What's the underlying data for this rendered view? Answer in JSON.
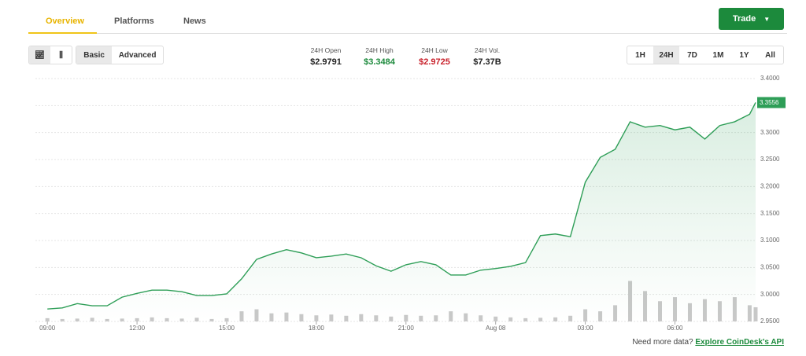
{
  "tabs": [
    "Overview",
    "Platforms",
    "News"
  ],
  "trade_button": "Trade",
  "chart_modes": [
    "Basic",
    "Advanced"
  ],
  "stats": [
    {
      "label": "24H Open",
      "value": "$2.9791"
    },
    {
      "label": "24H High",
      "value": "$3.3484"
    },
    {
      "label": "24H Low",
      "value": "$2.9725"
    },
    {
      "label": "24H Vol.",
      "value": "$7.37B"
    }
  ],
  "ranges": [
    "1H",
    "24H",
    "7D",
    "1M",
    "1Y",
    "All"
  ],
  "footer": {
    "prompt": "Need more data?",
    "link": "Explore CoinDesk's API"
  },
  "chart_data": {
    "type": "line",
    "x": [
      0,
      0.5,
      1,
      1.5,
      2,
      2.5,
      3,
      3.5,
      4,
      4.5,
      5,
      5.5,
      6,
      6.5,
      7,
      7.5,
      8,
      8.5,
      9,
      9.5,
      10,
      10.5,
      11,
      11.5,
      12,
      12.5,
      13,
      13.5,
      14,
      14.5,
      15,
      15.5,
      16,
      16.5,
      17,
      17.5,
      18,
      18.5,
      19,
      19.5,
      20,
      20.5,
      21,
      21.5,
      22,
      22.5,
      23,
      23.5,
      23.7
    ],
    "series": [
      {
        "color": "#2e9e57",
        "values": [
          2.973,
          2.975,
          2.983,
          2.979,
          2.979,
          2.995,
          3.002,
          3.008,
          3.008,
          3.005,
          2.998,
          2.998,
          3.001,
          3.029,
          3.065,
          3.075,
          3.083,
          3.077,
          3.068,
          3.071,
          3.075,
          3.068,
          3.053,
          3.043,
          3.055,
          3.061,
          3.055,
          3.036,
          3.036,
          3.045,
          3.048,
          3.052,
          3.059,
          3.109,
          3.112,
          3.107,
          3.208,
          3.254,
          3.269,
          3.32,
          3.31,
          3.313,
          3.305,
          3.31,
          3.288,
          3.313,
          3.32,
          3.334,
          3.3556
        ]
      },
      {
        "type": "bar",
        "axis": "y2",
        "color": "#c8c8c8",
        "values": [
          8,
          6,
          7,
          9,
          6,
          7,
          8,
          10,
          8,
          7,
          9,
          6,
          8,
          25,
          30,
          20,
          22,
          18,
          15,
          17,
          14,
          18,
          15,
          12,
          16,
          14,
          15,
          25,
          20,
          15,
          12,
          10,
          8,
          9,
          10,
          14,
          30,
          25,
          40,
          100,
          75,
          50,
          60,
          45,
          55,
          50,
          60,
          40,
          35
        ]
      }
    ],
    "last_label": "3.3556",
    "xlim": [
      -0.4,
      23.7
    ],
    "xticks": [
      {
        "value": 0,
        "label": "09:00"
      },
      {
        "value": 3,
        "label": "12:00"
      },
      {
        "value": 6,
        "label": "15:00"
      },
      {
        "value": 9,
        "label": "18:00"
      },
      {
        "value": 12,
        "label": "21:00"
      },
      {
        "value": 15,
        "label": "Aug 08"
      },
      {
        "value": 18,
        "label": "03:00"
      },
      {
        "value": 21,
        "label": "06:00"
      }
    ],
    "ylim": [
      2.95,
      3.4
    ],
    "yticks": [
      {
        "value": 2.95,
        "label": "2.9500"
      },
      {
        "value": 3.0,
        "label": "3.0000"
      },
      {
        "value": 3.05,
        "label": "3.0500"
      },
      {
        "value": 3.1,
        "label": "3.1000"
      },
      {
        "value": 3.15,
        "label": "3.1500"
      },
      {
        "value": 3.2,
        "label": "3.2000"
      },
      {
        "value": 3.25,
        "label": "3.2500"
      },
      {
        "value": 3.3,
        "label": "3.3000"
      },
      {
        "value": 3.35,
        "label": "3.3500"
      },
      {
        "value": 3.4,
        "label": "3.4000"
      }
    ],
    "y2lim": [
      0,
      600
    ],
    "grid": true
  }
}
